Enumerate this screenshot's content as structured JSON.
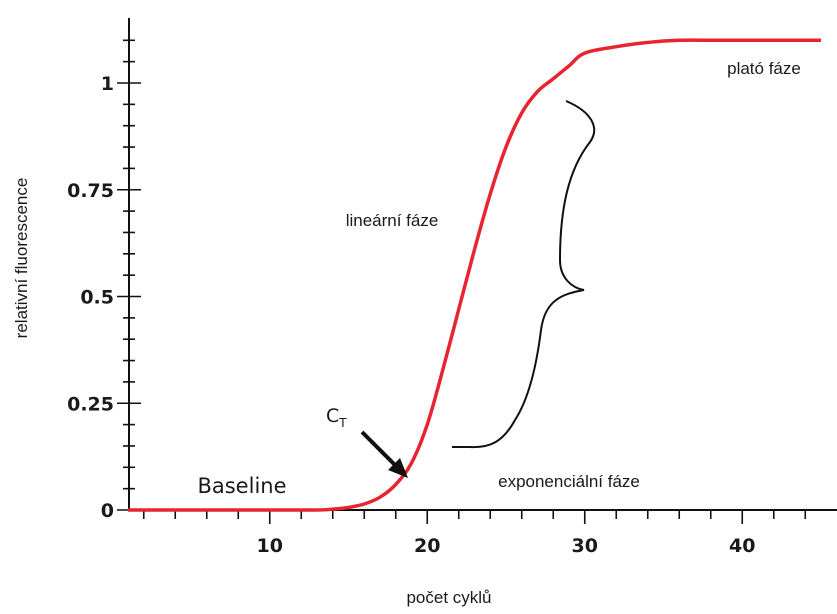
{
  "chart_data": {
    "type": "line",
    "xlabel": "počet cyklů",
    "ylabel": "relativní fluorescence",
    "xlim": [
      1,
      45
    ],
    "ylim": [
      0,
      1.13
    ],
    "x_ticks": [
      10,
      20,
      30,
      40
    ],
    "x_tick_labels": [
      "10",
      "20",
      "30",
      "40"
    ],
    "y_ticks": [
      0,
      0.25,
      0.5,
      0.75,
      1
    ],
    "y_tick_labels": [
      "0",
      "0.25",
      "0.5",
      "0.75",
      "1"
    ],
    "grid": false,
    "series": [
      {
        "color": "#e8242f",
        "x": [
          1,
          5,
          10,
          13,
          14,
          15,
          16,
          17,
          18,
          19,
          20,
          21,
          22,
          23,
          24,
          25,
          26,
          27,
          28,
          29,
          30,
          32,
          34,
          36,
          38,
          40,
          42,
          45
        ],
        "y": [
          0,
          0,
          0,
          0,
          0.002,
          0.006,
          0.014,
          0.03,
          0.06,
          0.11,
          0.2,
          0.33,
          0.47,
          0.61,
          0.74,
          0.85,
          0.93,
          0.98,
          1.01,
          1.04,
          1.07,
          1.085,
          1.095,
          1.1,
          1.1,
          1.1,
          1.1,
          1.1
        ]
      }
    ],
    "annotations": {
      "plateau": "plató fáze",
      "linear": "lineární fáze",
      "baseline": "Baseline",
      "exponential": "exponenciální fáze",
      "ct_main": "C",
      "ct_sub": "T"
    }
  }
}
